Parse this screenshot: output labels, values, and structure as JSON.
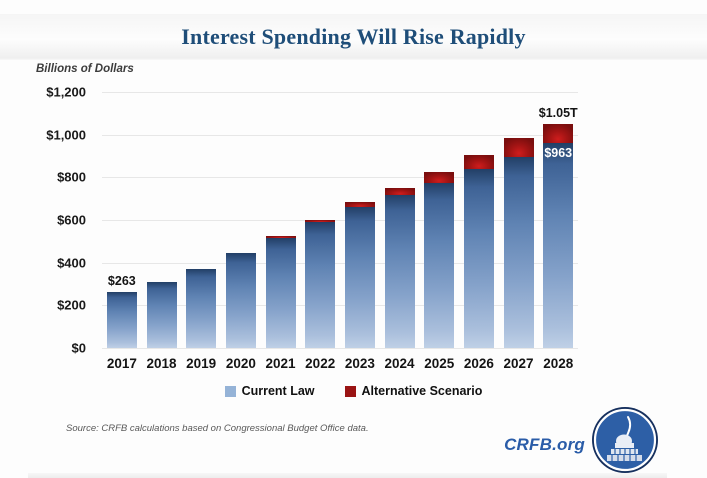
{
  "title": "Interest Spending Will Rise Rapidly",
  "axis": {
    "unit": "Billions of Dollars"
  },
  "y_ticks": [
    "$1,200",
    "$1,000",
    "$800",
    "$600",
    "$400",
    "$200",
    "$0"
  ],
  "legend": {
    "items": [
      {
        "label": "Current Law",
        "color": "#95b3d7"
      },
      {
        "label": "Alternative Scenario",
        "color": "#9a1414"
      }
    ]
  },
  "source": "Source: CRFB calculations based on Congressional Budget Office data.",
  "brand": {
    "site": "CRFB.org",
    "logo": "capitol-dome-logo"
  },
  "colors": {
    "title_blue": "#1f4e79",
    "bar_blue_top": "#223f66",
    "bar_blue_bottom": "#bfd0e6",
    "bar_red": "#9a1414",
    "grid": "#e7e7e7",
    "brand_blue": "#2a5ca8"
  },
  "chart_data": {
    "type": "bar",
    "stacked": true,
    "title": "Interest Spending Will Rise Rapidly",
    "ylabel": "Billions of Dollars",
    "ylim": [
      0,
      1200
    ],
    "ytick_step": 200,
    "grid": true,
    "legend_position": "bottom",
    "categories": [
      "2017",
      "2018",
      "2019",
      "2020",
      "2021",
      "2022",
      "2023",
      "2024",
      "2025",
      "2026",
      "2027",
      "2028"
    ],
    "series": [
      {
        "name": "Current Law",
        "values": [
          263,
          310,
          370,
          445,
          515,
          590,
          660,
          715,
          775,
          840,
          895,
          963
        ]
      },
      {
        "name": "Alternative Scenario",
        "values": [
          0,
          0,
          0,
          0,
          8,
          12,
          25,
          35,
          50,
          65,
          90,
          87
        ]
      }
    ],
    "annotations": [
      {
        "bar": 0,
        "text": "$263",
        "placement": "above"
      },
      {
        "bar": 11,
        "text": "$1.05T",
        "placement": "above"
      },
      {
        "bar": 11,
        "text": "$963",
        "placement": "inside-top"
      }
    ]
  }
}
